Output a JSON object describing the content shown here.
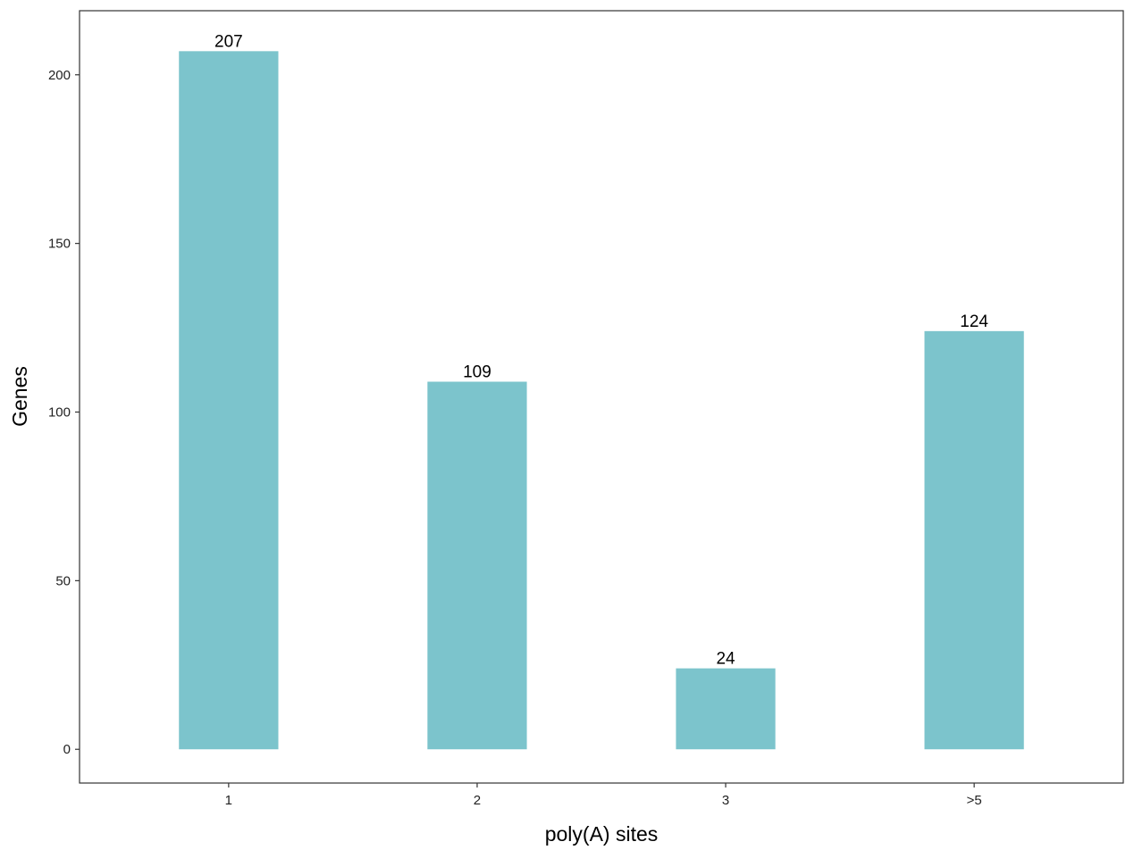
{
  "chart_data": {
    "type": "bar",
    "categories": [
      "1",
      "2",
      "3",
      ">5"
    ],
    "values": [
      207,
      109,
      24,
      124
    ],
    "data_labels": [
      "207",
      "109",
      "24",
      "124"
    ],
    "title": "",
    "xlabel": "poly(A) sites",
    "ylabel": "Genes",
    "ylim": [
      -10,
      219
    ],
    "yticks": [
      0,
      50,
      100,
      150,
      200
    ],
    "ytick_labels": [
      "0",
      "50",
      "100",
      "150",
      "200"
    ],
    "grid": false,
    "legend": "none",
    "colors": {
      "bar": "#7cc4cc",
      "panel_border": "#333333",
      "background": "#ffffff"
    }
  }
}
